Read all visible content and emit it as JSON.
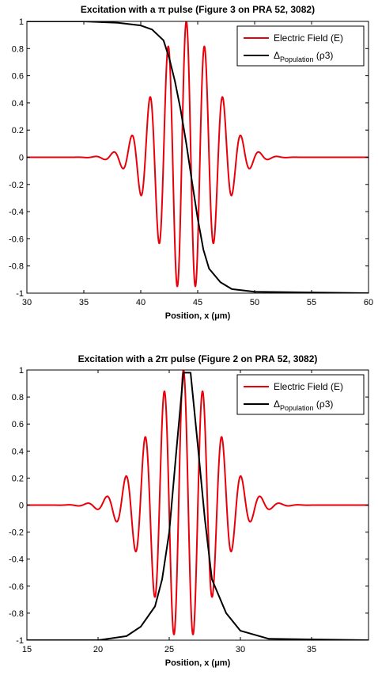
{
  "chart_data": [
    {
      "type": "line",
      "title": "Excitation with a π pulse (Figure 3 on PRA 52, 3082)",
      "xlabel": "Position, x (μm)",
      "ylabel": "",
      "xlim": [
        30,
        60
      ],
      "ylim": [
        -1,
        1
      ],
      "xticks": [
        "30",
        "35",
        "40",
        "45",
        "50",
        "55",
        "60"
      ],
      "yticks": [
        "-1",
        "-0.8",
        "-0.6",
        "-0.4",
        "-0.2",
        "0",
        "0.2",
        "0.4",
        "0.6",
        "0.8",
        "1"
      ],
      "legend_position": "top-right",
      "grid": false,
      "series": [
        {
          "name": "Electric Field (E)",
          "color": "#e8000b",
          "kind": "wavepacket",
          "center_x": 44.0,
          "period": 1.6,
          "peak_amplitude": 1.0,
          "envelope_width": 2.5,
          "x": [
            36.1,
            37.7,
            39.3,
            40.9,
            42.5,
            44.0,
            45.5,
            47.0,
            48.6,
            50.2,
            51.8
          ],
          "y": [
            0.03,
            0.04,
            -0.09,
            0.22,
            0.55,
            1.0,
            0.8,
            0.36,
            0.11,
            0.05,
            0.03
          ]
        },
        {
          "name": "ΔPopulation (ρ3)",
          "display": {
            "base": "Δ",
            "sub": "Population",
            "tail": " (ρ3)"
          },
          "color": "#000000",
          "kind": "step_down",
          "x": [
            30,
            35,
            38,
            40,
            41,
            42,
            42.5,
            43,
            43.5,
            44,
            44.5,
            45,
            45.5,
            46,
            47,
            48,
            50,
            60
          ],
          "y": [
            1,
            1,
            0.99,
            0.97,
            0.94,
            0.86,
            0.73,
            0.56,
            0.35,
            0.1,
            -0.18,
            -0.45,
            -0.68,
            -0.82,
            -0.92,
            -0.97,
            -0.99,
            -1
          ]
        }
      ]
    },
    {
      "type": "line",
      "title": "Excitation with a 2π pulse (Figure 2 on PRA 52, 3082)",
      "xlabel": "Position, x (μm)",
      "ylabel": "",
      "xlim": [
        15,
        39
      ],
      "ylim": [
        -1,
        1
      ],
      "xticks": [
        "15",
        "20",
        "25",
        "30",
        "35"
      ],
      "yticks": [
        "-1",
        "-0.8",
        "-0.6",
        "-0.4",
        "-0.2",
        "0",
        "0.2",
        "0.4",
        "0.6",
        "0.8",
        "1"
      ],
      "legend_position": "top-right",
      "grid": false,
      "series": [
        {
          "name": "Electric Field (E)",
          "color": "#e8000b",
          "kind": "wavepacket",
          "center_x": 26.0,
          "period": 1.35,
          "peak_amplitude": 1.0,
          "envelope_width": 2.3,
          "x": [
            18.0,
            19.6,
            21.3,
            22.9,
            24.6,
            26.0,
            27.3,
            28.7,
            30.0,
            31.4,
            33.0
          ],
          "y": [
            0.02,
            0.03,
            0.08,
            0.22,
            0.56,
            1.0,
            0.79,
            0.38,
            0.18,
            0.08,
            0.04
          ]
        },
        {
          "name": "ΔPopulation (ρ3)",
          "display": {
            "base": "Δ",
            "sub": "Population",
            "tail": " (ρ3)"
          },
          "color": "#000000",
          "kind": "pulse_up",
          "x": [
            15,
            20,
            22,
            23,
            24,
            24.5,
            25,
            25.5,
            26,
            26.5,
            27,
            27.5,
            28,
            29,
            30,
            32,
            39
          ],
          "y": [
            -1,
            -1,
            -0.97,
            -0.9,
            -0.75,
            -0.55,
            -0.2,
            0.4,
            0.98,
            0.98,
            0.45,
            -0.1,
            -0.55,
            -0.8,
            -0.93,
            -0.99,
            -1
          ]
        }
      ]
    }
  ]
}
